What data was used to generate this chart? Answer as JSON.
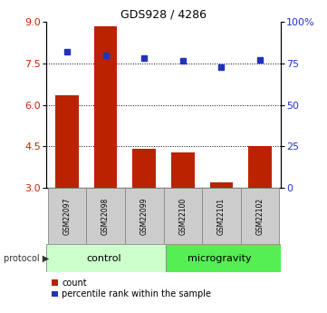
{
  "title": "GDS928 / 4286",
  "samples": [
    "GSM22097",
    "GSM22098",
    "GSM22099",
    "GSM22100",
    "GSM22101",
    "GSM22102"
  ],
  "red_values": [
    6.35,
    8.85,
    4.42,
    4.28,
    3.2,
    4.5
  ],
  "blue_values": [
    82,
    80,
    78,
    76.5,
    73,
    77
  ],
  "red_base": 3.0,
  "ylim": [
    3.0,
    9.0
  ],
  "y_ticks_left": [
    3,
    4.5,
    6,
    7.5,
    9
  ],
  "y_ticks_right": [
    0,
    25,
    50,
    75,
    100
  ],
  "dotted_lines": [
    7.5,
    6.0,
    4.5
  ],
  "bar_color": "#bb2200",
  "dot_color": "#2233bb",
  "control_label": "control",
  "micro_label": "microgravity",
  "protocol_label": "protocol",
  "legend_count": "count",
  "legend_percentile": "percentile rank within the sample",
  "tick_label_color_left": "#cc2200",
  "tick_label_color_right": "#2233cc",
  "sample_box_color": "#cccccc",
  "control_box_color": "#ccffcc",
  "micro_box_color": "#55ee55"
}
